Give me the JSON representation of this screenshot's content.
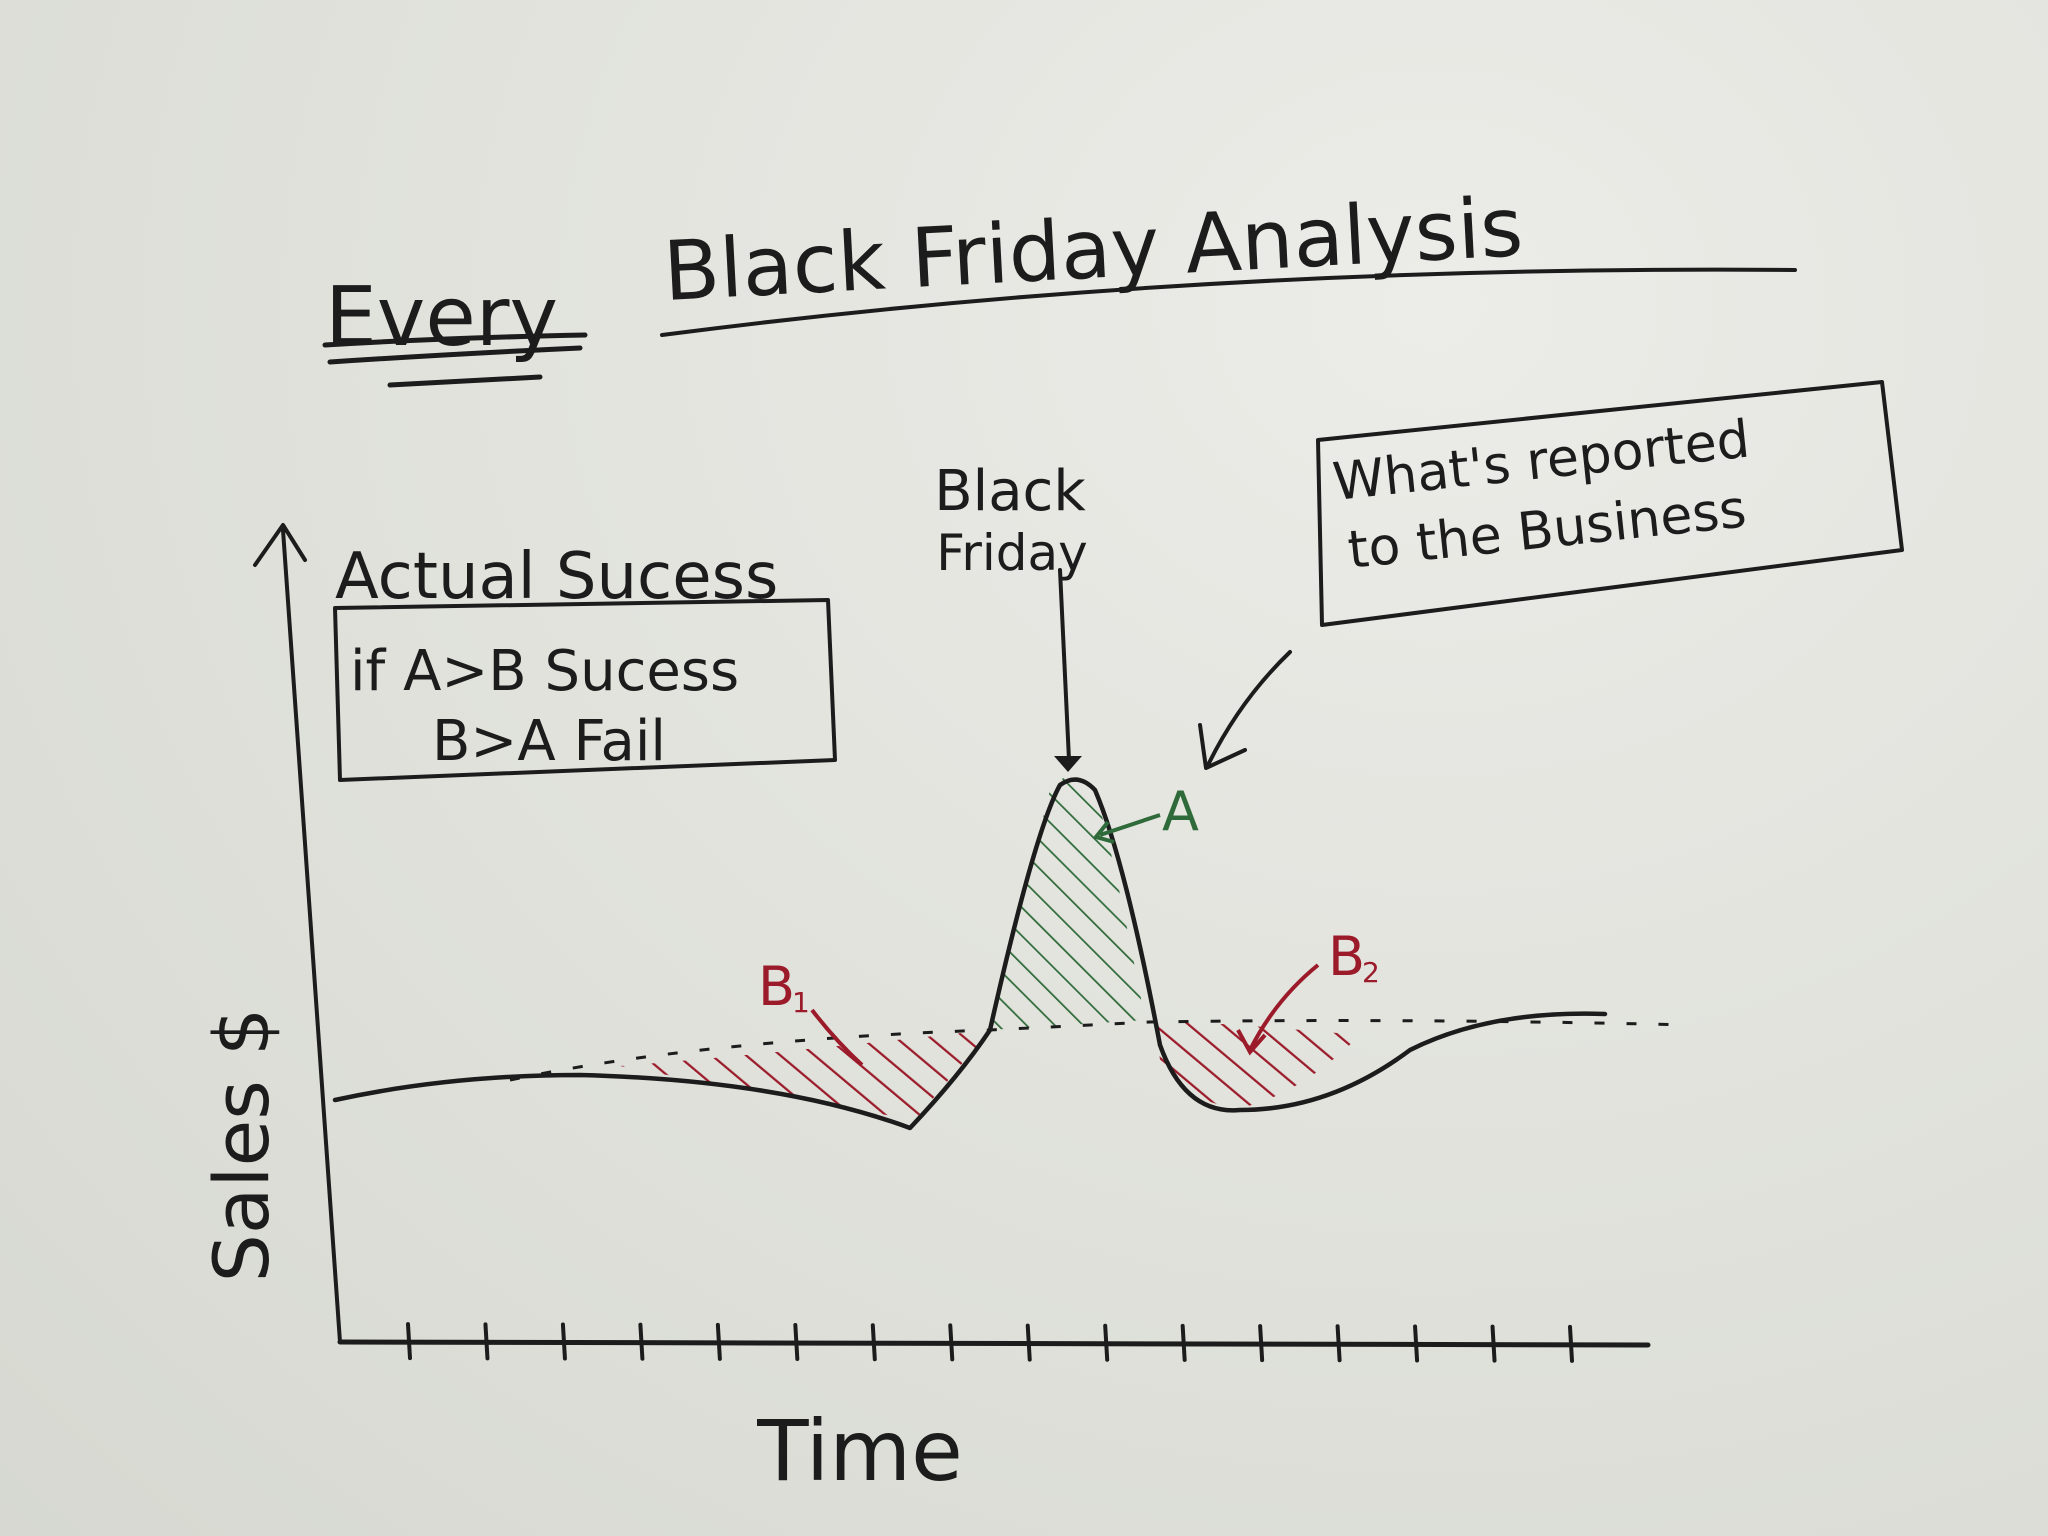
{
  "title": {
    "emphasis": "Every",
    "rest": "Black Friday Analysis"
  },
  "legend_box": {
    "heading": "Actual Sucess",
    "line1": "if A>B Sucess",
    "line2": "B>A Fail"
  },
  "event_label": {
    "line1": "Black",
    "line2": "Friday"
  },
  "callout_box": {
    "line1": "What's reported",
    "line2": "to the Business"
  },
  "region_labels": {
    "A": "A",
    "B1": "B",
    "B1_sub": "1",
    "B2": "B",
    "B2_sub": "2"
  },
  "axes": {
    "ylabel": "Sales $",
    "xlabel": "Time"
  },
  "colors": {
    "ink": "#1c1c1c",
    "fail_red": "#9b1b2a",
    "success_green": "#2f6b3a",
    "paper": "#e4e5df"
  },
  "chart_data": {
    "type": "line",
    "title": "Every Black Friday Analysis",
    "xlabel": "Time",
    "ylabel": "Sales $",
    "x_tick_count": 16,
    "baseline_style": "dashed",
    "regions": [
      {
        "name": "B1",
        "meaning": "sales below baseline before Black Friday",
        "color": "red"
      },
      {
        "name": "A",
        "meaning": "sales above baseline on Black Friday",
        "color": "green"
      },
      {
        "name": "B2",
        "meaning": "sales below baseline after Black Friday",
        "color": "red"
      }
    ]
  }
}
